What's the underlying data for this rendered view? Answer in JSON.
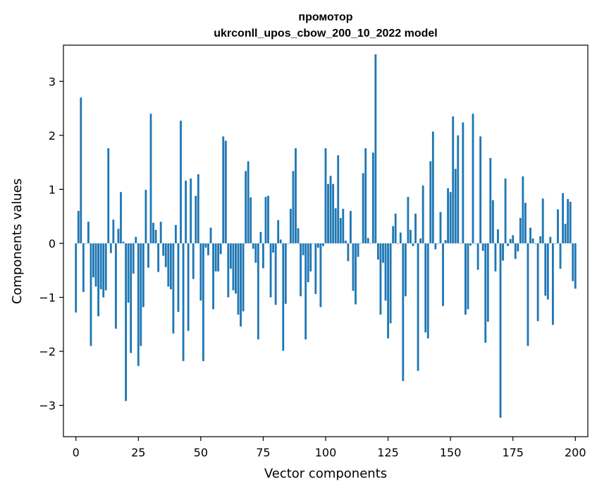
{
  "chart_data": {
    "type": "bar",
    "title": "промотор\nukrconll_upos_cbow_200_10_2022 model",
    "title_lines": [
      "промотор",
      "ukrconll_upos_cbow_200_10_2022 model"
    ],
    "xlabel": "Vector components",
    "ylabel": "Components values",
    "xlim": [
      -5,
      205
    ],
    "ylim": [
      -3.58,
      3.67
    ],
    "xticks": [
      0,
      25,
      50,
      75,
      100,
      125,
      150,
      175,
      200
    ],
    "yticks": [
      -3,
      -2,
      -1,
      0,
      1,
      2,
      3
    ],
    "grid": false,
    "bar_color": "#1f77b4",
    "values": [
      -1.28,
      0.6,
      2.7,
      -0.9,
      0.0,
      0.4,
      -1.9,
      -0.63,
      -0.8,
      -1.35,
      -0.85,
      -1.0,
      -0.87,
      1.76,
      -0.18,
      0.44,
      -1.58,
      0.27,
      0.95,
      0.03,
      -2.92,
      -1.1,
      -2.03,
      -0.56,
      0.12,
      -2.27,
      -1.9,
      -1.18,
      0.99,
      -0.45,
      2.4,
      0.38,
      0.25,
      -0.53,
      0.4,
      -0.23,
      -0.44,
      -0.8,
      -0.85,
      -1.67,
      0.34,
      -1.27,
      2.27,
      -2.18,
      1.16,
      -1.62,
      1.2,
      -0.66,
      0.88,
      1.28,
      -1.06,
      -2.18,
      -0.08,
      -0.22,
      0.29,
      -1.22,
      -0.52,
      -0.52,
      -0.2,
      1.98,
      1.9,
      -1.0,
      -0.47,
      -0.87,
      -0.93,
      -1.32,
      -1.54,
      -1.26,
      1.34,
      1.52,
      0.85,
      -0.1,
      -0.36,
      -1.78,
      0.21,
      -0.46,
      0.86,
      0.88,
      -1.0,
      -0.17,
      -1.14,
      0.43,
      0.07,
      -1.99,
      -1.12,
      0.0,
      0.64,
      1.34,
      1.76,
      0.28,
      -0.98,
      -0.22,
      -1.78,
      -0.72,
      -0.52,
      0.0,
      -0.94,
      -0.08,
      -1.18,
      -0.05,
      1.76,
      1.1,
      1.25,
      1.1,
      0.65,
      1.63,
      0.47,
      0.64,
      0.05,
      -0.33,
      0.6,
      -0.88,
      -1.13,
      -0.25,
      0.0,
      1.3,
      1.76,
      0.1,
      0.0,
      1.68,
      3.5,
      -0.3,
      -1.32,
      -0.36,
      -1.06,
      -1.76,
      -1.48,
      0.32,
      0.55,
      0.0,
      0.2,
      -2.55,
      -0.98,
      0.86,
      0.25,
      -0.05,
      0.55,
      -2.36,
      0.09,
      1.07,
      -1.65,
      -1.76,
      1.52,
      2.07,
      -0.11,
      0.0,
      0.58,
      -1.16,
      0.06,
      1.02,
      0.95,
      2.35,
      1.38,
      2.0,
      0.0,
      2.24,
      -1.32,
      -1.22,
      -0.04,
      2.4,
      0.0,
      -0.49,
      1.98,
      -0.14,
      -1.84,
      -1.45,
      1.58,
      0.8,
      -0.52,
      0.26,
      -3.23,
      -0.32,
      1.2,
      -0.05,
      0.08,
      0.15,
      -0.29,
      -0.15,
      0.47,
      1.24,
      0.75,
      -1.9,
      0.29,
      0.09,
      0.0,
      -1.44,
      0.13,
      0.83,
      -0.97,
      -1.04,
      0.12,
      -1.51,
      0.0,
      0.63,
      -0.47,
      0.93,
      0.36,
      0.82,
      0.77,
      -0.7,
      -0.84
    ]
  }
}
